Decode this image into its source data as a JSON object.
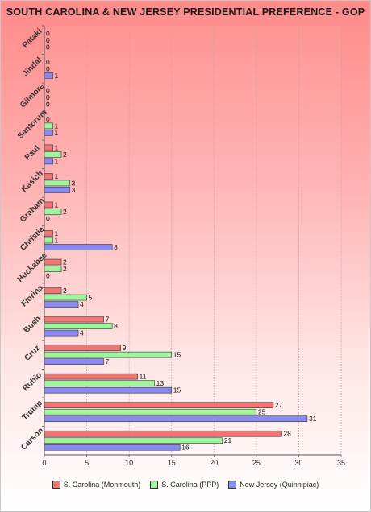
{
  "colors": {
    "monmouth": "#f07575",
    "ppp": "#9ef59e",
    "quinnipiac": "#8a8af5"
  },
  "chart_data": {
    "type": "bar",
    "orientation": "horizontal",
    "title": "SOUTH CAROLINA & NEW JERSEY PRESIDENTIAL PREFERENCE - GOP",
    "categories": [
      "Pataki",
      "Jindal",
      "Gilmore",
      "Santorum",
      "Paul",
      "Kasich",
      "Graham",
      "Christie",
      "Huckabee",
      "Fiorina",
      "Bush",
      "Cruz",
      "Rubio",
      "Trump",
      "Carson"
    ],
    "series": [
      {
        "name": "S. Carolina (Monmouth)",
        "values": [
          0,
          0,
          0,
          0,
          1,
          1,
          1,
          1,
          2,
          2,
          7,
          9,
          11,
          27,
          28
        ]
      },
      {
        "name": "S. Carolina (PPP)",
        "values": [
          0,
          0,
          0,
          1,
          2,
          3,
          2,
          1,
          2,
          5,
          8,
          15,
          13,
          25,
          21
        ]
      },
      {
        "name": "New Jersey (Quinnipiac)",
        "values": [
          0,
          1,
          0,
          1,
          1,
          3,
          0,
          8,
          0,
          4,
          4,
          7,
          15,
          31,
          16
        ]
      }
    ],
    "xlim": [
      0,
      35
    ],
    "xticks": [
      "0",
      "5",
      "10",
      "15",
      "20",
      "25",
      "30",
      "35"
    ],
    "grid": true,
    "legend_position": "bottom"
  }
}
